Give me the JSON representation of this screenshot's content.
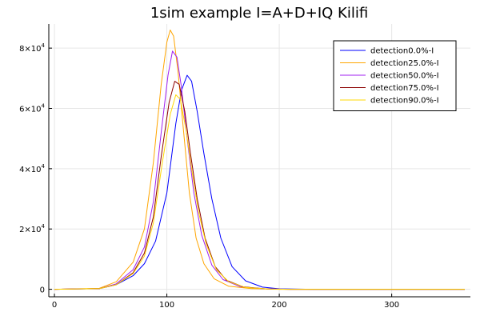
{
  "chart_data": {
    "type": "line",
    "title": "1sim example I=A+D+IQ Kilifi",
    "xlabel": "",
    "ylabel": "",
    "xlim": [
      -5,
      370
    ],
    "ylim": [
      -2500,
      88000
    ],
    "x_ticks": [
      {
        "value": 0,
        "label": "0"
      },
      {
        "value": 100,
        "label": "100"
      },
      {
        "value": 200,
        "label": "200"
      },
      {
        "value": 300,
        "label": "300"
      }
    ],
    "y_ticks": [
      {
        "value": 0,
        "mantissa": "0",
        "exponent": ""
      },
      {
        "value": 20000,
        "mantissa": "2×10",
        "exponent": "4"
      },
      {
        "value": 40000,
        "mantissa": "4×10",
        "exponent": "4"
      },
      {
        "value": 60000,
        "mantissa": "6×10",
        "exponent": "4"
      },
      {
        "value": 80000,
        "mantissa": "8×10",
        "exponent": "4"
      }
    ],
    "grid": true,
    "legend_position": "top-right",
    "series": [
      {
        "name": "detection0.0%-I",
        "color": "#0000ff",
        "points": [
          [
            0,
            0
          ],
          [
            40,
            200
          ],
          [
            55,
            1500
          ],
          [
            70,
            4500
          ],
          [
            80,
            8500
          ],
          [
            90,
            16000
          ],
          [
            100,
            32000
          ],
          [
            108,
            55000
          ],
          [
            113,
            66000
          ],
          [
            118,
            71000
          ],
          [
            122,
            69000
          ],
          [
            127,
            59000
          ],
          [
            133,
            45000
          ],
          [
            140,
            30000
          ],
          [
            148,
            17000
          ],
          [
            158,
            7500
          ],
          [
            170,
            2800
          ],
          [
            185,
            700
          ],
          [
            200,
            150
          ],
          [
            230,
            0
          ],
          [
            365,
            0
          ]
        ]
      },
      {
        "name": "detection25.0%-I",
        "color": "#ffa500",
        "points": [
          [
            0,
            0
          ],
          [
            40,
            300
          ],
          [
            55,
            2500
          ],
          [
            70,
            9000
          ],
          [
            80,
            20000
          ],
          [
            88,
            42000
          ],
          [
            95,
            68000
          ],
          [
            100,
            82000
          ],
          [
            103,
            86000
          ],
          [
            106,
            84000
          ],
          [
            110,
            72000
          ],
          [
            115,
            52000
          ],
          [
            120,
            32000
          ],
          [
            126,
            17000
          ],
          [
            133,
            8500
          ],
          [
            142,
            3500
          ],
          [
            155,
            1000
          ],
          [
            175,
            200
          ],
          [
            200,
            0
          ],
          [
            365,
            0
          ]
        ]
      },
      {
        "name": "detection50.0%-I",
        "color": "#a020f0",
        "points": [
          [
            0,
            0
          ],
          [
            40,
            200
          ],
          [
            55,
            1800
          ],
          [
            70,
            6500
          ],
          [
            80,
            14000
          ],
          [
            88,
            29000
          ],
          [
            95,
            52000
          ],
          [
            101,
            71000
          ],
          [
            105,
            79000
          ],
          [
            109,
            77000
          ],
          [
            113,
            67000
          ],
          [
            118,
            50000
          ],
          [
            124,
            32000
          ],
          [
            131,
            18000
          ],
          [
            140,
            8000
          ],
          [
            150,
            3200
          ],
          [
            165,
            900
          ],
          [
            185,
            150
          ],
          [
            210,
            0
          ],
          [
            365,
            0
          ]
        ]
      },
      {
        "name": "detection75.0%-I",
        "color": "#8b0000",
        "points": [
          [
            0,
            0
          ],
          [
            40,
            200
          ],
          [
            55,
            1500
          ],
          [
            70,
            5500
          ],
          [
            80,
            12000
          ],
          [
            88,
            24000
          ],
          [
            95,
            44000
          ],
          [
            102,
            62000
          ],
          [
            107,
            69000
          ],
          [
            111,
            68000
          ],
          [
            116,
            59000
          ],
          [
            121,
            45000
          ],
          [
            127,
            30000
          ],
          [
            134,
            17000
          ],
          [
            143,
            7500
          ],
          [
            153,
            3000
          ],
          [
            168,
            800
          ],
          [
            190,
            100
          ],
          [
            210,
            0
          ],
          [
            365,
            0
          ]
        ]
      },
      {
        "name": "detection90.0%-I",
        "color": "#ffd700",
        "points": [
          [
            0,
            0
          ],
          [
            40,
            200
          ],
          [
            55,
            1500
          ],
          [
            70,
            5200
          ],
          [
            80,
            11000
          ],
          [
            88,
            22000
          ],
          [
            96,
            42000
          ],
          [
            103,
            58000
          ],
          [
            108,
            64500
          ],
          [
            112,
            63000
          ],
          [
            117,
            53000
          ],
          [
            122,
            40000
          ],
          [
            128,
            26000
          ],
          [
            135,
            15000
          ],
          [
            144,
            6500
          ],
          [
            155,
            2500
          ],
          [
            170,
            600
          ],
          [
            190,
            100
          ],
          [
            210,
            0
          ],
          [
            365,
            0
          ]
        ]
      }
    ]
  }
}
